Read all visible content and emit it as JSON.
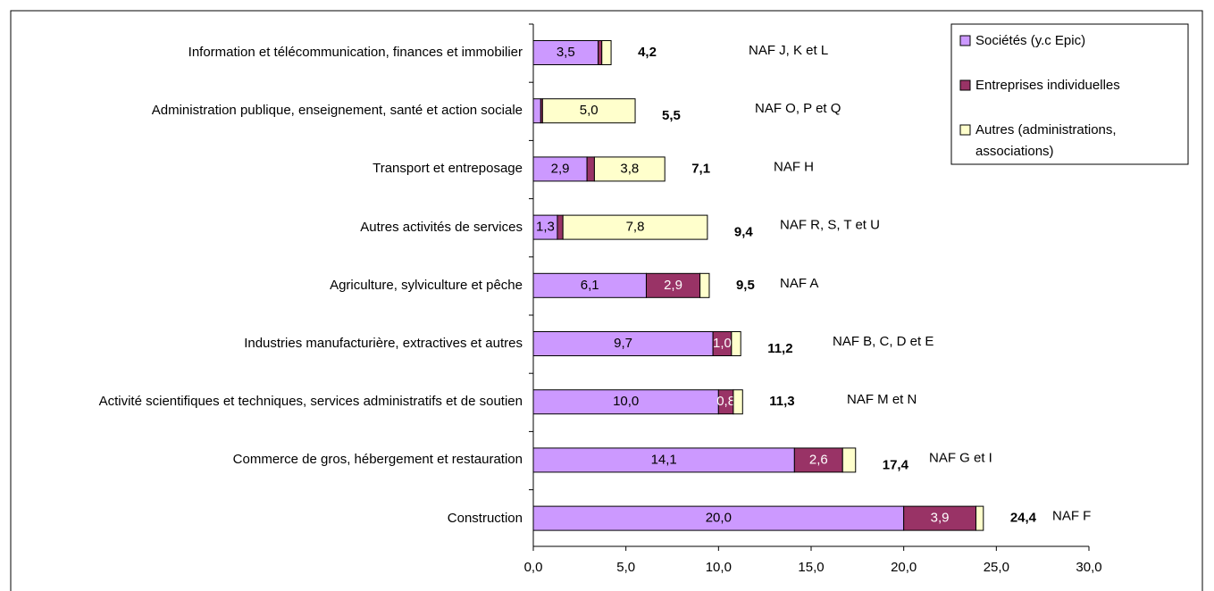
{
  "chart_data": {
    "type": "stacked_bar_horizontal",
    "categories": [
      "Information et télécommunication, finances et immobilier",
      "Administration publique, enseignement, santé et action sociale",
      "Transport et entreposage",
      "Autres activités de services",
      "Agriculture, sylviculture et pêche",
      "Industries manufacturière, extractives et autres",
      "Activité scientifiques et techniques, services administratifs et de soutien",
      "Commerce de gros, hébergement et restauration",
      "Construction"
    ],
    "series": [
      {
        "name": "Sociétés (y.c Epic)",
        "color": "#cc99ff",
        "values": [
          3.5,
          0.4,
          2.9,
          1.3,
          6.1,
          9.7,
          10.0,
          14.1,
          20.0
        ],
        "value_labels": [
          "3,5",
          null,
          "2,9",
          "1,3",
          "6,1",
          "9,7",
          "10,0",
          "14,1",
          "20,0"
        ]
      },
      {
        "name": "Entreprises individuelles",
        "color": "#993366",
        "values": [
          0.2,
          0.1,
          0.4,
          0.3,
          2.9,
          1.0,
          0.8,
          2.6,
          3.9
        ],
        "value_labels": [
          null,
          null,
          null,
          null,
          "2,9",
          "1,0",
          "0,8",
          "2,6",
          "3,9"
        ]
      },
      {
        "name": "Autres (administrations, associations)",
        "color": "#ffffcc",
        "values": [
          0.5,
          5.0,
          3.8,
          7.8,
          0.5,
          0.5,
          0.5,
          0.7,
          0.4
        ],
        "value_labels": [
          null,
          "5,0",
          "3,8",
          "7,8",
          null,
          null,
          null,
          null,
          null
        ]
      }
    ],
    "totals": [
      4.2,
      5.5,
      7.1,
      9.4,
      9.5,
      11.2,
      11.3,
      17.4,
      24.4
    ],
    "total_labels": [
      "4,2",
      "5,5",
      "7,1",
      "9,4",
      "9,5",
      "11,2",
      "11,3",
      "17,4",
      "24,4"
    ],
    "annotations": [
      "NAF J, K et L",
      "NAF O, P et Q",
      "NAF H",
      "NAF R, S, T et U",
      "NAF A",
      "NAF B, C, D et E",
      "NAF M et N",
      "NAF G et I",
      "NAF F"
    ],
    "xlim": [
      0,
      30
    ],
    "xticks": [
      {
        "value": 0,
        "label": "0,0"
      },
      {
        "value": 5,
        "label": "5,0"
      },
      {
        "value": 10,
        "label": "10,0"
      },
      {
        "value": 15,
        "label": "15,0"
      },
      {
        "value": 20,
        "label": "20,0"
      },
      {
        "value": 25,
        "label": "25,0"
      },
      {
        "value": 30,
        "label": "30,0"
      }
    ],
    "legend": "top-right"
  }
}
